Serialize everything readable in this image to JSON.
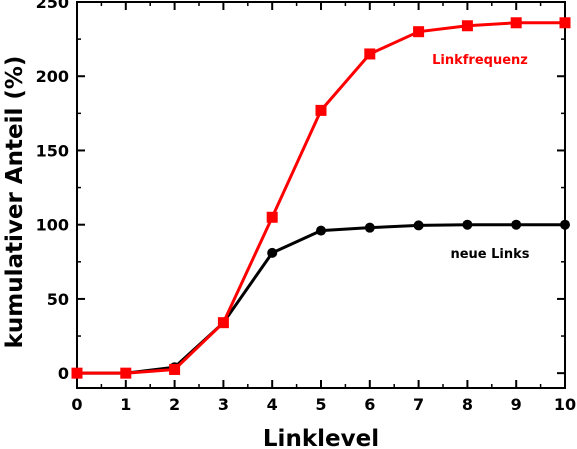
{
  "chart_data": {
    "type": "line",
    "title": "",
    "xlabel": "Linklevel",
    "ylabel": "kumulativer Anteil (%)",
    "xlim": [
      0,
      10
    ],
    "ylim": [
      -10,
      250
    ],
    "xticks": [
      0,
      1,
      2,
      3,
      4,
      5,
      6,
      7,
      8,
      9,
      10
    ],
    "yticks": [
      0,
      50,
      100,
      150,
      200,
      250
    ],
    "grid": false,
    "legend": "inline labels",
    "x": [
      0,
      1,
      2,
      3,
      4,
      5,
      6,
      7,
      8,
      9,
      10
    ],
    "series": [
      {
        "name": "Linkfrequenz",
        "color": "#ff0000",
        "marker": "square",
        "values": [
          0,
          0,
          2.5,
          34,
          105,
          177,
          215,
          230,
          234,
          236,
          236
        ]
      },
      {
        "name": "neue Links",
        "color": "#000000",
        "marker": "circle",
        "values": [
          0,
          0,
          4,
          34,
          81,
          96,
          98,
          99.5,
          100,
          100,
          100
        ]
      }
    ]
  }
}
